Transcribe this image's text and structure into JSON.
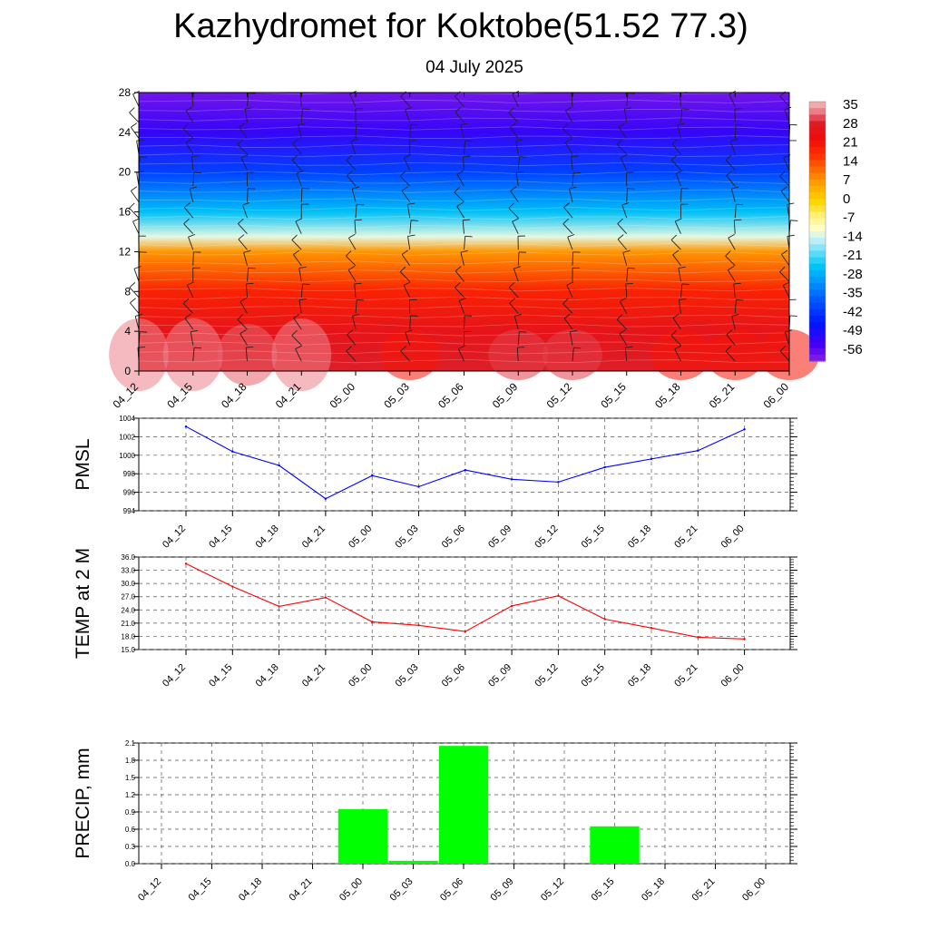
{
  "page": {
    "title": "Kazhydromet for Koktobe(51.52 77.3)",
    "subtitle": "04 July 2025"
  },
  "chart_data": [
    {
      "type": "heatmap",
      "name": "temperature-height-section",
      "x_labels": [
        "04_12",
        "04_15",
        "04_18",
        "04_21",
        "05_00",
        "05_03",
        "05_06",
        "05_09",
        "05_12",
        "05_15",
        "05_18",
        "05_21",
        "06_00"
      ],
      "y_ticks": [
        0,
        4,
        8,
        12,
        16,
        20,
        24,
        28
      ],
      "ylim": [
        0,
        28
      ],
      "colorbar_labels": [
        "35",
        "28",
        "21",
        "14",
        "7",
        "0",
        "-7",
        "-14",
        "-21",
        "-28",
        "-35",
        "-42",
        "-49",
        "-56"
      ],
      "colorbar_range": [
        -60,
        38
      ],
      "vertical_profile": [
        {
          "y": 0,
          "v": 30
        },
        {
          "y": 4,
          "v": 27
        },
        {
          "y": 8,
          "v": 20
        },
        {
          "y": 12,
          "v": 8
        },
        {
          "y": 13.5,
          "v": -12
        },
        {
          "y": 16,
          "v": -25
        },
        {
          "y": 20,
          "v": -40
        },
        {
          "y": 24,
          "v": -52
        },
        {
          "y": 28,
          "v": -58
        }
      ],
      "surface_anomaly": [
        3,
        3,
        2,
        3,
        0,
        -1,
        0,
        1,
        1,
        0,
        -1,
        -1,
        -1
      ],
      "overlay": "wind barbs"
    },
    {
      "type": "line",
      "name": "pmsl",
      "ylabel": "PMSL",
      "color": "#0000ff",
      "categories": [
        "04_12",
        "04_15",
        "04_18",
        "04_21",
        "05_00",
        "05_03",
        "05_06",
        "05_09",
        "05_12",
        "05_15",
        "05_18",
        "05_21",
        "06_00"
      ],
      "values": [
        1003.1,
        1000.4,
        998.9,
        995.3,
        997.8,
        996.6,
        998.4,
        997.4,
        997.1,
        998.7,
        999.6,
        1000.5,
        1002.8
      ],
      "ylim": [
        994,
        1004
      ],
      "y_ticks": [
        "994",
        "996",
        "998",
        "1000",
        "1002",
        "1004"
      ],
      "grid": true
    },
    {
      "type": "line",
      "name": "temp2m",
      "ylabel": "TEMP at 2 M",
      "color": "#ff0000",
      "categories": [
        "04_12",
        "04_15",
        "04_18",
        "04_21",
        "05_00",
        "05_03",
        "05_06",
        "05_09",
        "05_12",
        "05_15",
        "05_18",
        "05_21",
        "06_00"
      ],
      "values": [
        34.5,
        29.3,
        24.8,
        26.8,
        21.3,
        20.5,
        19.1,
        24.9,
        27.2,
        21.9,
        19.9,
        17.8,
        17.4
      ],
      "ylim": [
        15,
        36
      ],
      "y_ticks": [
        "15.0",
        "18.0",
        "21.0",
        "24.0",
        "27.0",
        "30.0",
        "33.0",
        "36.0"
      ],
      "grid": true
    },
    {
      "type": "bar",
      "name": "precip",
      "ylabel": "PRECIP, mm",
      "color": "#00ff00",
      "categories": [
        "04_12",
        "04_15",
        "04_18",
        "04_21",
        "05_00",
        "05_03",
        "05_06",
        "05_09",
        "05_12",
        "05_15",
        "05_18",
        "05_21",
        "06_00"
      ],
      "values": [
        0,
        0,
        0,
        0,
        0.95,
        0.05,
        2.05,
        0,
        0,
        0.65,
        0,
        0,
        0
      ],
      "ylim": [
        0,
        2.1
      ],
      "y_ticks": [
        "0.0",
        "0.3",
        "0.6",
        "0.9",
        "1.2",
        "1.5",
        "1.8",
        "2.1"
      ],
      "grid": true
    }
  ]
}
